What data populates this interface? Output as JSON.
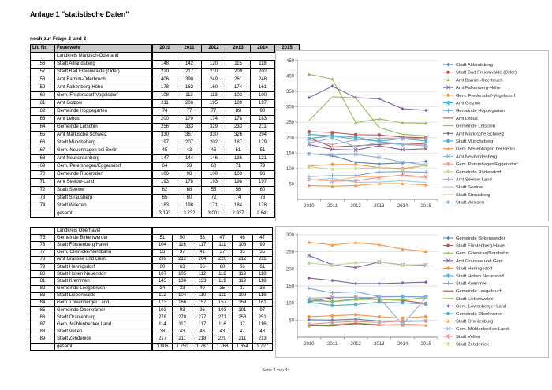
{
  "page": {
    "title": "Anlage 1 \"statistische Daten\"",
    "subtitle": "noch zur Frage 2 und 3",
    "footer": "Seite 4 von 44"
  },
  "table": {
    "headers": [
      "Lfd Nr.",
      "Feuerwehr",
      "2010",
      "2011",
      "2012",
      "2013",
      "2014",
      "2015"
    ],
    "groups": [
      {
        "label": "Landkreis Märkisch-Oderland",
        "rows": [
          {
            "nr": "56",
            "name": "Stadt Altlandsberg",
            "values": [
              148,
              142,
              120,
              115,
              118,
              123
            ]
          },
          {
            "nr": "57",
            "name": "Stadt Bad Freienwalde (Oder)",
            "values": [
              220,
              217,
              210,
              209,
              202,
              200
            ]
          },
          {
            "nr": "58",
            "name": "Amt Barnim-Oderbruch",
            "values": [
              406,
              390,
              249,
              261,
              248,
              247
            ]
          },
          {
            "nr": "59",
            "name": "Amt Falkenberg-Höhe",
            "values": [
              178,
              162,
              160,
              174,
              161,
              164
            ]
          },
          {
            "nr": "60",
            "name": "Gem. Fredersdorf-Vogelsdorf",
            "values": [
              108,
              113,
              113,
              103,
              100,
              110
            ]
          },
          {
            "nr": "61",
            "name": "Amt Golzow",
            "values": [
              211,
              206,
              195,
              189,
              197,
              189
            ]
          },
          {
            "nr": "62",
            "name": "Gemeinde Hoppegarten",
            "values": [
              74,
              77,
              77,
              89,
              90,
              88
            ]
          },
          {
            "nr": "63",
            "name": "Amt Lebus",
            "values": [
              200,
              170,
              174,
              178,
              183,
              179
            ]
          },
          {
            "nr": "64",
            "name": "Gemeinde Letschin",
            "values": [
              256,
              333,
              329,
              233,
              211,
              206
            ]
          },
          {
            "nr": "65",
            "name": "Amt Märkische Schweiz",
            "values": [
              330,
              367,
              330,
              326,
              294,
              289
            ]
          },
          {
            "nr": "66",
            "name": "Stadt Müncheberg",
            "values": [
              197,
              207,
              202,
              187,
              179,
              175
            ]
          },
          {
            "nr": "67",
            "name": "Gem. Neuenhagen bei Berlin",
            "values": [
              45,
              43,
              45,
              51,
              51,
              47
            ]
          },
          {
            "nr": "68",
            "name": "Amt Neuhardenberg",
            "values": [
              147,
              144,
              146,
              136,
              121,
              112
            ]
          },
          {
            "nr": "69",
            "name": "Gem. Petershagen/Eggersdorf",
            "values": [
              64,
              59,
              60,
              71,
              79,
              73
            ]
          },
          {
            "nr": "70",
            "name": "Gemeinde Rüdersdorf",
            "values": [
              106,
              98,
              100,
              103,
              96,
              110
            ]
          },
          {
            "nr": "71",
            "name": "Amt Seelow-Land",
            "values": [
              193,
              178,
              193,
              198,
              197,
              199
            ]
          },
          {
            "nr": "72",
            "name": "Stadt Seelow",
            "values": [
              62,
              68,
              55,
              56,
              60,
              55
            ]
          },
          {
            "nr": "73",
            "name": "Stadt Strausberg",
            "values": [
              65,
              60,
              72,
              74,
              76,
              69
            ]
          },
          {
            "nr": "74",
            "name": "Stadt Wriezen",
            "values": [
              183,
              198,
              171,
              184,
              178,
              174
            ]
          }
        ],
        "total_label": "gesamt",
        "total_values": [
          "3.193",
          "3.232",
          "3.001",
          "2.937",
          "2.841",
          "2.809"
        ]
      },
      {
        "label": "Landkreis Oberhavel",
        "rows": [
          {
            "nr": "75",
            "name": "Gemeinde Birkenwerder",
            "values": [
              51,
              50,
              53,
              47,
              46,
              47
            ]
          },
          {
            "nr": "76",
            "name": "Stadt Fürstenberg/Havel",
            "values": [
              104,
              116,
              117,
              111,
              108,
              99
            ]
          },
          {
            "nr": "77",
            "name": "Gem. Glienicke/Nordbahn",
            "values": [
              33,
              37,
              41,
              37,
              35,
              35
            ]
          },
          {
            "nr": "78",
            "name": "Amt Gransee und Gem.",
            "values": [
              239,
              212,
              204,
              220,
              212,
              211
            ]
          },
          {
            "nr": "79",
            "name": "Stadt Hennigsdorf",
            "values": [
              60,
              63,
              66,
              60,
              56,
              61
            ]
          },
          {
            "nr": "80",
            "name": "Stadt Hohen Neuendorf",
            "values": [
              107,
              105,
              112,
              118,
              119,
              118
            ]
          },
          {
            "nr": "81",
            "name": "Stadt Kremmen",
            "values": [
              143,
              130,
              133,
              119,
              119,
              118
            ]
          },
          {
            "nr": "82",
            "name": "Gemeinde Leegebruch",
            "values": [
              34,
              33,
              40,
              35,
              37,
              36
            ]
          },
          {
            "nr": "83",
            "name": "Stadt Liebenwalde",
            "values": [
              112,
              104,
              110,
              111,
              109,
              116
            ]
          },
          {
            "nr": "84",
            "name": "Gem. Löwenberger Land",
            "values": [
              173,
              166,
              157,
              157,
              159,
              161
            ]
          },
          {
            "nr": "85",
            "name": "Gemeinde Oberkrämer",
            "values": [
              103,
              93,
              96,
              103,
              101,
              97
            ]
          },
          {
            "nr": "86",
            "name": "Stadt Oranienburg",
            "values": [
              278,
              270,
              277,
              271,
              258,
              251
            ]
          },
          {
            "nr": "87",
            "name": "Gem. Mühlenbecker Land",
            "values": [
              114,
              117,
              117,
              116,
              37,
              116
            ]
          },
          {
            "nr": "88",
            "name": "Stadt Velten",
            "values": [
              38,
              43,
              46,
              43,
              47,
              48
            ]
          },
          {
            "nr": "89",
            "name": "Stadt Zehdenick",
            "values": [
              217,
              211,
              218,
              220,
              211,
              213
            ]
          }
        ],
        "total_label": "gesamt",
        "total_values": [
          "1.806",
          "1.750",
          "1.787",
          "1.768",
          "1.654",
          "1.727"
        ]
      }
    ]
  },
  "chart_data": [
    {
      "type": "line",
      "title": "",
      "xlabel": "",
      "ylabel": "",
      "x": [
        "2010",
        "2011",
        "2012",
        "2013",
        "2014",
        "2015"
      ],
      "ylim": [
        0,
        450
      ],
      "ytick_step": 50,
      "grid": true,
      "legend_position": "right",
      "series": [
        {
          "name": "Stadt Altlandsberg",
          "values": [
            148,
            142,
            120,
            115,
            118,
            123
          ],
          "color": "#4F81BD",
          "marker": "diamond"
        },
        {
          "name": "Stadt Bad Freienwalde (Oder)",
          "values": [
            220,
            217,
            210,
            209,
            202,
            200
          ],
          "color": "#C0504D",
          "marker": "square"
        },
        {
          "name": "Amt Barnim-Oderbruch",
          "values": [
            406,
            390,
            249,
            261,
            248,
            247
          ],
          "color": "#9BBB59",
          "marker": "triangle"
        },
        {
          "name": "Amt Falkenberg-Höhe",
          "values": [
            178,
            162,
            160,
            174,
            161,
            164
          ],
          "color": "#8064A2",
          "marker": "x"
        },
        {
          "name": "Gem. Fredersdorf-Vogelsdorf",
          "values": [
            108,
            113,
            113,
            103,
            100,
            110
          ],
          "color": "#F79646",
          "marker": "circle"
        },
        {
          "name": "Amt Golzow",
          "values": [
            211,
            206,
            195,
            189,
            197,
            189
          ],
          "color": "#4BACC6",
          "marker": "asterisk"
        },
        {
          "name": "Gemeinde Hoppegarten",
          "values": [
            74,
            77,
            77,
            89,
            90,
            88
          ],
          "color": "#7CA2D8",
          "marker": "plus"
        },
        {
          "name": "Amt Lebus",
          "values": [
            200,
            170,
            174,
            178,
            183,
            179
          ],
          "color": "#BE4B48",
          "marker": "none"
        },
        {
          "name": "Gemeinde Letschin",
          "values": [
            256,
            333,
            329,
            233,
            211,
            206
          ],
          "color": "#9BBB59",
          "marker": "none"
        },
        {
          "name": "Amt Märkische Schweiz",
          "values": [
            330,
            367,
            330,
            326,
            294,
            289
          ],
          "color": "#8064A2",
          "marker": "diamond"
        },
        {
          "name": "Stadt Müncheberg",
          "values": [
            197,
            207,
            202,
            187,
            179,
            175
          ],
          "color": "#4BACC6",
          "marker": "square"
        },
        {
          "name": "Gem. Neuenhagen bei Berlin",
          "values": [
            45,
            43,
            45,
            51,
            51,
            47
          ],
          "color": "#F79646",
          "marker": "triangle"
        },
        {
          "name": "Amt Neuhardenberg",
          "values": [
            147,
            144,
            146,
            136,
            121,
            112
          ],
          "color": "#95B3D7",
          "marker": "x"
        },
        {
          "name": "Gem. Petershagen/Eggersdorf",
          "values": [
            64,
            59,
            60,
            71,
            79,
            73
          ],
          "color": "#D99694",
          "marker": "asterisk"
        },
        {
          "name": "Gemeinde Rüdersdorf",
          "values": [
            106,
            98,
            100,
            103,
            96,
            110
          ],
          "color": "#C3D69B",
          "marker": "circle"
        },
        {
          "name": "Amt Seelow-Land",
          "values": [
            193,
            178,
            193,
            198,
            197,
            199
          ],
          "color": "#B2A2C7",
          "marker": "plus"
        },
        {
          "name": "Stadt Seelow",
          "values": [
            62,
            68,
            55,
            56,
            60,
            55
          ],
          "color": "#92CDDC",
          "marker": "none"
        },
        {
          "name": "Stadt Strausberg",
          "values": [
            65,
            60,
            72,
            74,
            76,
            69
          ],
          "color": "#FABF8F",
          "marker": "none"
        },
        {
          "name": "Stadt Wriezen",
          "values": [
            183,
            198,
            171,
            184,
            178,
            174
          ],
          "color": "#95B3D7",
          "marker": "circle"
        }
      ]
    },
    {
      "type": "line",
      "title": "",
      "xlabel": "",
      "ylabel": "",
      "x": [
        "2010",
        "2011",
        "2012",
        "2013",
        "2014",
        "2015"
      ],
      "ylim": [
        0,
        300
      ],
      "ytick_step": 50,
      "grid": true,
      "legend_position": "right",
      "series": [
        {
          "name": "Gemeinde Birkenwerder",
          "values": [
            51,
            50,
            53,
            47,
            46,
            47
          ],
          "color": "#4F81BD",
          "marker": "diamond"
        },
        {
          "name": "Stadt Fürstenberg/Havel",
          "values": [
            104,
            116,
            117,
            111,
            108,
            99
          ],
          "color": "#C0504D",
          "marker": "square"
        },
        {
          "name": "Gem. Glienicke/Nordbahn",
          "values": [
            33,
            37,
            41,
            37,
            35,
            35
          ],
          "color": "#9BBB59",
          "marker": "triangle"
        },
        {
          "name": "Amt Gransee und Gem.",
          "values": [
            239,
            212,
            204,
            220,
            212,
            211
          ],
          "color": "#8064A2",
          "marker": "x"
        },
        {
          "name": "Stadt Hennigsdorf",
          "values": [
            60,
            63,
            66,
            60,
            56,
            61
          ],
          "color": "#F79646",
          "marker": "circle"
        },
        {
          "name": "Stadt Hohen Neuendorf",
          "values": [
            107,
            105,
            112,
            118,
            119,
            118
          ],
          "color": "#4BACC6",
          "marker": "asterisk"
        },
        {
          "name": "Stadt Kremmen",
          "values": [
            143,
            130,
            133,
            119,
            119,
            118
          ],
          "color": "#7CA2D8",
          "marker": "plus"
        },
        {
          "name": "Gemeinde Leegebruch",
          "values": [
            34,
            33,
            40,
            35,
            37,
            36
          ],
          "color": "#BE4B48",
          "marker": "none"
        },
        {
          "name": "Stadt Liebenwalde",
          "values": [
            112,
            104,
            110,
            111,
            109,
            116
          ],
          "color": "#9BBB59",
          "marker": "none"
        },
        {
          "name": "Gem. Löwenberger Land",
          "values": [
            173,
            166,
            157,
            157,
            159,
            161
          ],
          "color": "#8064A2",
          "marker": "diamond"
        },
        {
          "name": "Gemeinde Oberkrämer",
          "values": [
            103,
            93,
            96,
            103,
            101,
            97
          ],
          "color": "#4BACC6",
          "marker": "square"
        },
        {
          "name": "Stadt Oranienburg",
          "values": [
            278,
            270,
            277,
            271,
            258,
            251
          ],
          "color": "#F79646",
          "marker": "triangle"
        },
        {
          "name": "Gem. Mühlenbecker Land",
          "values": [
            114,
            117,
            117,
            116,
            37,
            116
          ],
          "color": "#95B3D7",
          "marker": "x"
        },
        {
          "name": "Stadt Velten",
          "values": [
            38,
            43,
            46,
            43,
            47,
            48
          ],
          "color": "#D99694",
          "marker": "asterisk"
        },
        {
          "name": "Stadt Zehdenick",
          "values": [
            217,
            211,
            218,
            220,
            211,
            213
          ],
          "color": "#C3D69B",
          "marker": "circle"
        }
      ]
    }
  ]
}
